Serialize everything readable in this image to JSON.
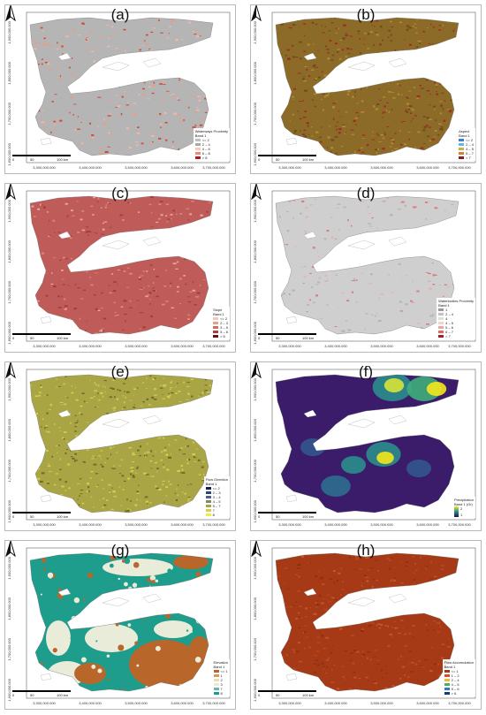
{
  "ticks": {
    "x": [
      "3,300,000.000",
      "3,400,000.000",
      "3,500,000.000",
      "3,600,000.000",
      "3,700,000.000"
    ],
    "y": [
      "1,900,000.000",
      "1,800,000.000",
      "1,700,000.000",
      "1,600,000.000"
    ]
  },
  "scalebar": [
    "0",
    "50",
    "100 km"
  ],
  "colors": {
    "neutral_water": "#ffffff",
    "border": "#b8b8b8"
  },
  "panels": [
    {
      "id": "a",
      "letter": "(a)",
      "legend_title": "Waterways Proximity",
      "band": "Band 1",
      "base": "#b5b5b5",
      "texture": [
        "#ef9a86",
        "#f5b7a4",
        "#d44b33"
      ],
      "density": 0.35,
      "legend": [
        {
          "label": "<= 2",
          "color": "#c0c0c0"
        },
        {
          "label": "2 – 4",
          "color": "#a9a9a9"
        },
        {
          "label": "4 – 6",
          "color": "#f6c9b9"
        },
        {
          "label": "6 – 8",
          "color": "#f08b72"
        },
        {
          "label": "> 8",
          "color": "#c1121f"
        }
      ]
    },
    {
      "id": "b",
      "letter": "(b)",
      "legend_title": "Aspect",
      "band": "Band 1",
      "base": "#8c6a28",
      "texture": [
        "#b08d32",
        "#6b4d1c",
        "#a3262a"
      ],
      "density": 0.55,
      "legend": [
        {
          "label": "<= 2",
          "color": "#3a7fd1"
        },
        {
          "label": "2 – 4",
          "color": "#6cb3e8"
        },
        {
          "label": "4 – 5",
          "color": "#c9b24a"
        },
        {
          "label": "5 – 7",
          "color": "#d9822b"
        },
        {
          "label": "> 7",
          "color": "#8b1a1a"
        }
      ]
    },
    {
      "id": "c",
      "letter": "(c)",
      "legend_title": "Slope",
      "band": "Band 1",
      "base": "#bf5b58",
      "texture": [
        "#d9847c",
        "#a23d3b",
        "#e7a69b"
      ],
      "density": 0.35,
      "legend": [
        {
          "label": "<= 2",
          "color": "#f4c7b8"
        },
        {
          "label": "2 – 3",
          "color": "#e99d8b"
        },
        {
          "label": "3 – 5",
          "color": "#d66c5f"
        },
        {
          "label": "5 – 6",
          "color": "#b33e37"
        },
        {
          "label": "> 6",
          "color": "#6d0f12"
        }
      ]
    },
    {
      "id": "d",
      "letter": "(d)",
      "legend_title": "Waterbodies Proximity",
      "band": "Band 1",
      "base": "#cfcfcf",
      "texture": [
        "#d97c7c",
        "#e8b0b0",
        "#b5b5b5"
      ],
      "density": 0.22,
      "legend": [
        {
          "label": "1",
          "color": "#9a9a9a"
        },
        {
          "label": "2 – 4",
          "color": "#c2c2c2"
        },
        {
          "label": "4",
          "color": "#dedede"
        },
        {
          "label": "4 – 5",
          "color": "#f3d3cf"
        },
        {
          "label": "5 – 6",
          "color": "#eaa7a1"
        },
        {
          "label": "6 – 7",
          "color": "#d96d66"
        },
        {
          "label": "> 7",
          "color": "#a8201e"
        }
      ]
    },
    {
      "id": "e",
      "letter": "(e)",
      "legend_title": "Flow Direction",
      "band": "Band 1",
      "base": "#a9a444",
      "texture": [
        "#d4cf4c",
        "#6f6b2a",
        "#c6c25a"
      ],
      "density": 0.6,
      "legend": [
        {
          "label": "<= 2",
          "color": "#0f1f5c"
        },
        {
          "label": "2 – 3",
          "color": "#2c4479"
        },
        {
          "label": "3 – 4",
          "color": "#4e6381"
        },
        {
          "label": "4 – 5",
          "color": "#7f8a6a"
        },
        {
          "label": "5 – 7",
          "color": "#a9a444"
        },
        {
          "label": "7",
          "color": "#d8d04a"
        },
        {
          "label": "8",
          "color": "#f4e84a"
        }
      ]
    },
    {
      "id": "f",
      "letter": "(f)",
      "legend_title": "Precipitation",
      "band": "Band 1 (Gr)",
      "base": "#3a1c6b",
      "texture": [],
      "density": 0,
      "gradient": {
        "high": "#f5e51b",
        "low": "#2a0b5a",
        "high_label": "2",
        "low_label": "1"
      },
      "legend": []
    },
    {
      "id": "g",
      "letter": "(g)",
      "legend_title": "Elevation",
      "band": "Band 1",
      "base": "#1e9c8c",
      "texture": [
        "#e8ecd8",
        "#b9662a",
        "#1e9c8c"
      ],
      "density": 0,
      "legend": [
        {
          "label": "<= 1",
          "color": "#b9662a"
        },
        {
          "label": "1",
          "color": "#d39b60"
        },
        {
          "label": "2",
          "color": "#e8dfb8"
        },
        {
          "label": "3",
          "color": "#e8ecd8"
        },
        {
          "label": "7",
          "color": "#67b9a8"
        },
        {
          "label": "8",
          "color": "#1e9c8c"
        }
      ]
    },
    {
      "id": "h",
      "letter": "(h)",
      "legend_title": "Flow Accumulation",
      "band": "Band 1",
      "base": "#a63a17",
      "texture": [
        "#b8481d",
        "#8e2e12",
        "#c4562a"
      ],
      "density": 0.45,
      "legend": [
        {
          "label": "<= 1",
          "color": "#a63a17"
        },
        {
          "label": "1 – 2",
          "color": "#e0472c"
        },
        {
          "label": "2 – 4",
          "color": "#f0b93a"
        },
        {
          "label": "4 – 5",
          "color": "#4fae63"
        },
        {
          "label": "5 – 6",
          "color": "#2a7fb8"
        },
        {
          "label": "> 6",
          "color": "#123c7a"
        }
      ]
    }
  ]
}
